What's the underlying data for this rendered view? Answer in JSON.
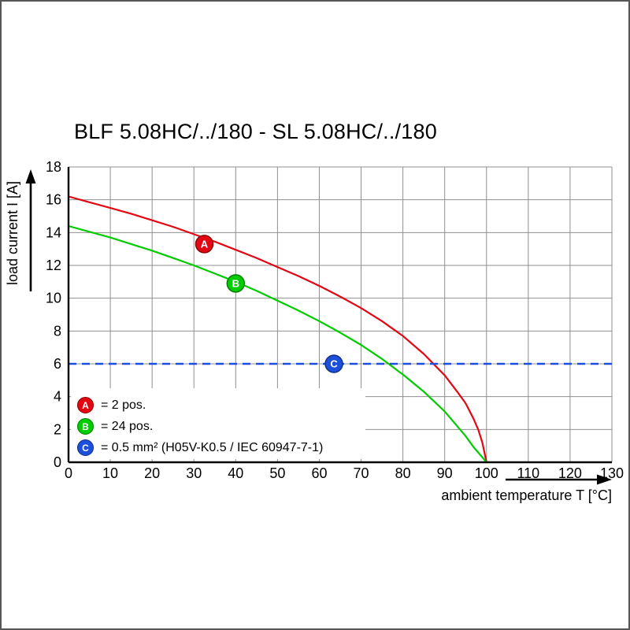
{
  "chart_data": {
    "type": "line",
    "title": "BLF 5.08HC/../180 - SL 5.08HC/../180",
    "xlabel": "ambient temperature T [°C]",
    "ylabel": "load current I [A]",
    "xlim": [
      0,
      130
    ],
    "ylim": [
      0,
      18
    ],
    "x_ticks": [
      0,
      10,
      20,
      30,
      40,
      50,
      60,
      70,
      80,
      90,
      100,
      110,
      120,
      130
    ],
    "y_ticks": [
      0,
      2,
      4,
      6,
      8,
      10,
      12,
      14,
      16,
      18
    ],
    "grid": true,
    "grid_color": "#8f8f8f",
    "series": [
      {
        "name": "A",
        "legend": "= 2 pos.",
        "color": "#e30613",
        "marker_fill": "#e30613",
        "marker_stroke": "#8b0006",
        "marker_at": [
          32.5,
          13.3
        ],
        "x": [
          0,
          5,
          10,
          15,
          20,
          25,
          30,
          35,
          40,
          45,
          50,
          55,
          60,
          65,
          70,
          75,
          80,
          85,
          90,
          93,
          95,
          97,
          98,
          99,
          100
        ],
        "y": [
          16.2,
          15.85,
          15.5,
          15.15,
          14.75,
          14.35,
          13.9,
          13.45,
          12.95,
          12.45,
          11.9,
          11.35,
          10.75,
          10.1,
          9.4,
          8.6,
          7.7,
          6.6,
          5.3,
          4.3,
          3.6,
          2.6,
          2.0,
          1.2,
          0
        ]
      },
      {
        "name": "B",
        "legend": "= 24 pos.",
        "color": "#00cc00",
        "marker_fill": "#00cc00",
        "marker_stroke": "#067d06",
        "marker_at": [
          40,
          10.9
        ],
        "x": [
          0,
          5,
          10,
          15,
          20,
          25,
          30,
          35,
          40,
          45,
          50,
          55,
          60,
          65,
          70,
          75,
          80,
          85,
          90,
          93,
          95,
          97,
          98,
          99,
          100
        ],
        "y": [
          14.4,
          14.05,
          13.7,
          13.3,
          12.9,
          12.45,
          12.0,
          11.5,
          11.0,
          10.45,
          9.85,
          9.25,
          8.6,
          7.9,
          7.15,
          6.3,
          5.35,
          4.3,
          3.1,
          2.2,
          1.6,
          0.9,
          0.6,
          0.3,
          0
        ]
      },
      {
        "name": "C",
        "legend": "= 0.5 mm² (H05V-K0.5 / IEC 60947-7-1)",
        "color": "#1d4fdd",
        "marker_fill": "#1d4fdd",
        "marker_stroke": "#12307f",
        "style": "dashed",
        "hline": 6,
        "marker_at": [
          63.5,
          6
        ]
      }
    ]
  }
}
